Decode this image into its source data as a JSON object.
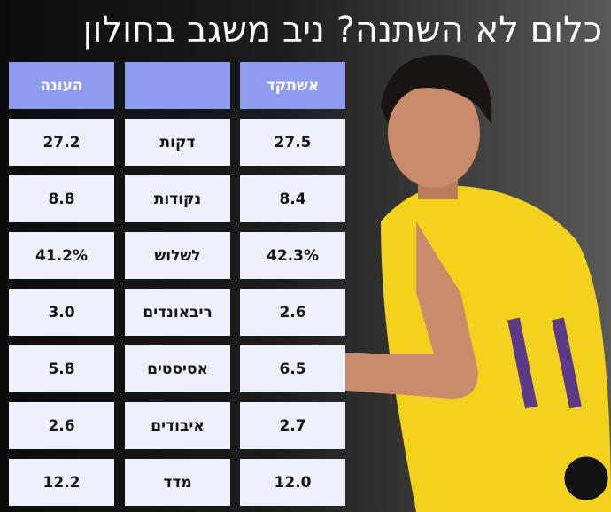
{
  "header": {
    "title": "כלום לא השתנה? ניב משגב בחולון"
  },
  "table": {
    "header": {
      "left": "העונה",
      "right": "אשתקד"
    },
    "rows": [
      [
        "27.2",
        "דקות",
        "27.5"
      ],
      [
        "8.8",
        "נקודות",
        "8.4"
      ],
      [
        "41.2%",
        "לשלוש",
        "42.3%"
      ],
      [
        "3.0",
        "ריבאונדים",
        "2.6"
      ],
      [
        "5.8",
        "אסיסטים",
        "6.5"
      ],
      [
        "2.6",
        "איבודים",
        "2.7"
      ],
      [
        "12.2",
        "מדד",
        "12.0"
      ]
    ]
  }
}
